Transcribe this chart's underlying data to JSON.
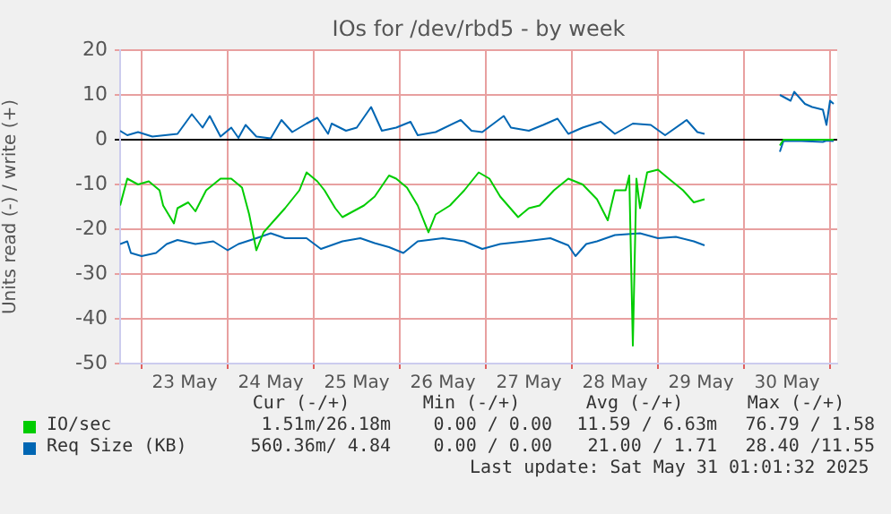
{
  "chart_data": {
    "type": "line",
    "title": "IOs for /dev/rbd5 - by week",
    "ylabel": "Units read (-) / write (+)",
    "xlim": [
      "2025-05-22T18:00",
      "2025-05-31T02:00"
    ],
    "xticks": [
      {
        "value": "2025-05-23T00:00",
        "label": null
      },
      {
        "value": "2025-05-23T12:00",
        "label": "23 May"
      },
      {
        "value": "2025-05-24T00:00",
        "label": null
      },
      {
        "value": "2025-05-24T12:00",
        "label": "24 May"
      },
      {
        "value": "2025-05-25T00:00",
        "label": null
      },
      {
        "value": "2025-05-25T12:00",
        "label": "25 May"
      },
      {
        "value": "2025-05-26T00:00",
        "label": null
      },
      {
        "value": "2025-05-26T12:00",
        "label": "26 May"
      },
      {
        "value": "2025-05-27T00:00",
        "label": null
      },
      {
        "value": "2025-05-27T12:00",
        "label": "27 May"
      },
      {
        "value": "2025-05-28T00:00",
        "label": null
      },
      {
        "value": "2025-05-28T12:00",
        "label": "28 May"
      },
      {
        "value": "2025-05-29T00:00",
        "label": null
      },
      {
        "value": "2025-05-29T12:00",
        "label": "29 May"
      },
      {
        "value": "2025-05-30T00:00",
        "label": null
      },
      {
        "value": "2025-05-30T12:00",
        "label": "30 May"
      },
      {
        "value": "2025-05-31T00:00",
        "label": null
      }
    ],
    "ylim": [
      -50,
      20
    ],
    "yticks": [
      -50,
      -40,
      -30,
      -20,
      -10,
      0,
      10,
      20
    ],
    "grid": true,
    "legend": "bottom",
    "series": [
      {
        "name": "IO/sec",
        "color": "#00cc00",
        "x": [
          "2025-05-22T18:00",
          "2025-05-22T20:00",
          "2025-05-22T23:00",
          "2025-05-23T02:00",
          "2025-05-23T05:00",
          "2025-05-23T06:00",
          "2025-05-23T09:00",
          "2025-05-23T10:00",
          "2025-05-23T13:00",
          "2025-05-23T15:00",
          "2025-05-23T18:00",
          "2025-05-23T22:00",
          "2025-05-24T01:00",
          "2025-05-24T04:00",
          "2025-05-24T06:00",
          "2025-05-24T08:00",
          "2025-05-24T10:00",
          "2025-05-24T13:00",
          "2025-05-24T16:00",
          "2025-05-24T20:00",
          "2025-05-24T22:00",
          "2025-05-25T01:00",
          "2025-05-25T03:00",
          "2025-05-25T06:00",
          "2025-05-25T08:00",
          "2025-05-25T11:00",
          "2025-05-25T14:00",
          "2025-05-25T17:00",
          "2025-05-25T21:00",
          "2025-05-25T23:00",
          "2025-05-26T02:00",
          "2025-05-26T05:00",
          "2025-05-26T08:00",
          "2025-05-26T10:00",
          "2025-05-26T14:00",
          "2025-05-26T18:00",
          "2025-05-26T22:00",
          "2025-05-27T01:00",
          "2025-05-27T04:00",
          "2025-05-27T09:00",
          "2025-05-27T12:00",
          "2025-05-27T15:00",
          "2025-05-27T19:00",
          "2025-05-27T23:00",
          "2025-05-28T03:00",
          "2025-05-28T07:00",
          "2025-05-28T10:00",
          "2025-05-28T12:00",
          "2025-05-28T15:00",
          "2025-05-28T16:00",
          "2025-05-28T17:00",
          "2025-05-28T18:00",
          "2025-05-28T19:00",
          "2025-05-28T21:00",
          "2025-05-29T00:00",
          "2025-05-29T03:00",
          "2025-05-29T07:00",
          "2025-05-29T10:00",
          "2025-05-29T13:00",
          "2025-05-29T14:00",
          "2025-05-30T10:00",
          "2025-05-30T11:00",
          "2025-05-31T01:00"
        ],
        "values": [
          -14.7,
          -8.7,
          -10,
          -9.3,
          -11.3,
          -14.7,
          -18.7,
          -15.3,
          -14,
          -16,
          -11.3,
          -8.7,
          -8.7,
          -10.7,
          -16.7,
          -24.7,
          -20.7,
          -18,
          -15.3,
          -11.3,
          -7.3,
          -9.3,
          -11.3,
          -15.3,
          -17.3,
          -16,
          -14.7,
          -12.7,
          -8,
          -8.7,
          -10.7,
          -14.7,
          -20.7,
          -16.7,
          -14.7,
          -11.3,
          -7.3,
          -8.7,
          -12.7,
          -17.3,
          -15.3,
          -14.7,
          -11.3,
          -8.7,
          -10,
          -13.3,
          -18,
          -11.3,
          -11.3,
          -8,
          -46,
          -8.7,
          -15.3,
          -7.3,
          -6.7,
          -8.7,
          -11.3,
          -14,
          -13.3,
          null,
          -1.3,
          0,
          0
        ]
      },
      {
        "name": "Req Size (KB)",
        "color": "#0066b3",
        "x": [
          "2025-05-22T18:00",
          "2025-05-22T20:00",
          "2025-05-22T21:00",
          "2025-05-23T00:00",
          "2025-05-23T04:00",
          "2025-05-23T07:00",
          "2025-05-23T10:00",
          "2025-05-23T15:00",
          "2025-05-23T20:00",
          "2025-05-24T00:00",
          "2025-05-24T03:00",
          "2025-05-24T08:00",
          "2025-05-24T12:00",
          "2025-05-24T16:00",
          "2025-05-24T22:00",
          "2025-05-25T02:00",
          "2025-05-25T08:00",
          "2025-05-25T13:00",
          "2025-05-25T17:00",
          "2025-05-25T21:00",
          "2025-05-26T01:00",
          "2025-05-26T05:00",
          "2025-05-26T12:00",
          "2025-05-26T18:00",
          "2025-05-26T23:00",
          "2025-05-27T04:00",
          "2025-05-27T11:00",
          "2025-05-27T18:00",
          "2025-05-27T23:00",
          "2025-05-28T01:00",
          "2025-05-28T04:00",
          "2025-05-28T07:00",
          "2025-05-28T12:00",
          "2025-05-28T19:00",
          "2025-05-29T00:00",
          "2025-05-29T05:00",
          "2025-05-29T10:00",
          "2025-05-29T13:00",
          "2025-05-29T14:00",
          "2025-05-30T10:00",
          "2025-05-30T11:00",
          "2025-05-30T16:00",
          "2025-05-30T22:00",
          "2025-05-30T23:00",
          "2025-05-31T01:00"
        ],
        "values": [
          -23.3,
          -22.7,
          -25.3,
          -26,
          -25.3,
          -23.3,
          -22.4,
          -23.3,
          -22.7,
          -24.7,
          -23.3,
          -22,
          -20.9,
          -22,
          -22,
          -24.4,
          -22.7,
          -22,
          -23.1,
          -24,
          -25.3,
          -22.7,
          -22,
          -22.7,
          -24.4,
          -23.3,
          -22.7,
          -22,
          -23.6,
          -26,
          -23.3,
          -22.7,
          -21.3,
          -20.9,
          -22,
          -21.7,
          -22.7,
          -23.6,
          null,
          -2.7,
          -0.3,
          -0.3,
          -0.5,
          -0.2,
          -0.3
        ]
      },
      {
        "color": "#0066b3",
        "x": [
          "2025-05-22T18:00",
          "2025-05-22T20:00",
          "2025-05-22T23:00",
          "2025-05-23T03:00",
          "2025-05-23T10:00",
          "2025-05-23T14:00",
          "2025-05-23T17:00",
          "2025-05-23T19:00",
          "2025-05-23T22:00",
          "2025-05-24T01:00",
          "2025-05-24T03:00",
          "2025-05-24T05:00",
          "2025-05-24T08:00",
          "2025-05-24T12:00",
          "2025-05-24T15:00",
          "2025-05-24T18:00",
          "2025-05-24T22:00",
          "2025-05-25T01:00",
          "2025-05-25T04:00",
          "2025-05-25T05:00",
          "2025-05-25T09:00",
          "2025-05-25T12:00",
          "2025-05-25T16:00",
          "2025-05-25T19:00",
          "2025-05-25T23:00",
          "2025-05-26T03:00",
          "2025-05-26T05:00",
          "2025-05-26T10:00",
          "2025-05-26T17:00",
          "2025-05-26T20:00",
          "2025-05-26T23:00",
          "2025-05-27T05:00",
          "2025-05-27T07:00",
          "2025-05-27T12:00",
          "2025-05-27T16:00",
          "2025-05-27T20:00",
          "2025-05-27T23:00",
          "2025-05-28T03:00",
          "2025-05-28T08:00",
          "2025-05-28T12:00",
          "2025-05-28T17:00",
          "2025-05-28T22:00",
          "2025-05-29T02:00",
          "2025-05-29T08:00",
          "2025-05-29T11:00",
          "2025-05-29T13:00",
          "2025-05-29T14:00",
          "2025-05-30T10:00",
          "2025-05-30T13:00",
          "2025-05-30T14:00",
          "2025-05-30T17:00",
          "2025-05-30T19:00",
          "2025-05-30T22:00",
          "2025-05-30T23:00",
          "2025-05-31T00:00",
          "2025-05-31T01:00"
        ],
        "values": [
          2,
          1,
          1.7,
          0.7,
          1.3,
          5.7,
          2.7,
          5.3,
          0.7,
          2.7,
          0.4,
          3.3,
          0.7,
          0.3,
          4.4,
          1.7,
          3.6,
          4.9,
          1.3,
          3.6,
          2,
          2.7,
          7.3,
          2,
          2.7,
          4,
          1,
          1.7,
          4.4,
          2,
          1.7,
          5.3,
          2.7,
          2,
          3.3,
          4.7,
          1.3,
          2.7,
          4,
          1.3,
          3.6,
          3.3,
          1,
          4.4,
          1.7,
          1.3,
          null,
          10,
          8.7,
          10.7,
          8,
          7.3,
          6.7,
          3.3,
          8.7,
          8
        ]
      }
    ],
    "annotations": [
      "Cur (-/+)",
      "Min (-/+)",
      "Avg (-/+)",
      "Max (-/+)",
      "1.51m/26.18m",
      "0.00 / 0.00",
      "11.59 / 6.63m",
      "76.79 / 1.58",
      "560.36m/ 4.84",
      "0.00 / 0.00",
      "21.00 / 1.71",
      "28.40 /11.55",
      "Last update: Sat May 31 01:01:32 2025"
    ]
  }
}
